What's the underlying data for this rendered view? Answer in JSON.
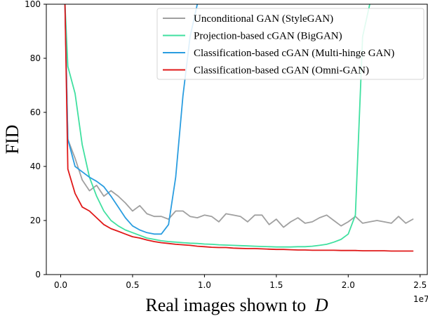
{
  "chart_data": {
    "type": "line",
    "xlabel": "Real images shown to",
    "xlabel_italic": "D",
    "ylabel": "FID",
    "x_offset_label": "1e7",
    "xlim": [
      -0.1,
      2.55
    ],
    "ylim": [
      0,
      100
    ],
    "xticks": [
      0.0,
      0.5,
      1.0,
      1.5,
      2.0,
      2.5
    ],
    "xtick_labels": [
      "0.0",
      "0.5",
      "1.0",
      "1.5",
      "2.0",
      "2.5"
    ],
    "yticks": [
      0,
      20,
      40,
      60,
      80,
      100
    ],
    "ytick_labels": [
      "0",
      "20",
      "40",
      "60",
      "80",
      "100"
    ],
    "legend_position": "top-right",
    "series": [
      {
        "name": "Unconditional GAN (StyleGAN)",
        "color": "#a0a0a0",
        "x": [
          0.03,
          0.05,
          0.1,
          0.15,
          0.2,
          0.25,
          0.3,
          0.35,
          0.4,
          0.45,
          0.5,
          0.55,
          0.6,
          0.65,
          0.7,
          0.75,
          0.8,
          0.85,
          0.9,
          0.95,
          1.0,
          1.05,
          1.1,
          1.15,
          1.2,
          1.25,
          1.3,
          1.35,
          1.4,
          1.45,
          1.5,
          1.55,
          1.6,
          1.65,
          1.7,
          1.75,
          1.8,
          1.85,
          1.9,
          1.95,
          2.0,
          2.05,
          2.1,
          2.15,
          2.2,
          2.25,
          2.3,
          2.35,
          2.4,
          2.45
        ],
        "y": [
          100,
          50,
          43,
          35,
          31,
          33,
          29,
          31,
          29,
          26.5,
          23.5,
          25.5,
          22.5,
          21.5,
          21.5,
          20.5,
          23.5,
          23.5,
          21.5,
          21,
          22,
          21.5,
          19.5,
          22.5,
          22,
          21.5,
          19.5,
          22,
          22,
          18.5,
          20.5,
          17.5,
          19.5,
          21,
          19,
          19.5,
          21,
          22,
          20,
          18,
          19.5,
          21.5,
          19,
          19.5,
          20,
          19.5,
          19,
          21.5,
          19,
          20.5
        ]
      },
      {
        "name": "Projection-based cGAN (BigGAN)",
        "color": "#40e0a0",
        "x": [
          0.03,
          0.05,
          0.1,
          0.15,
          0.2,
          0.25,
          0.3,
          0.35,
          0.4,
          0.45,
          0.5,
          0.55,
          0.6,
          0.65,
          0.7,
          0.75,
          0.8,
          0.85,
          0.9,
          0.95,
          1.0,
          1.05,
          1.1,
          1.15,
          1.2,
          1.25,
          1.3,
          1.35,
          1.4,
          1.45,
          1.5,
          1.55,
          1.6,
          1.65,
          1.7,
          1.75,
          1.8,
          1.85,
          1.9,
          1.95,
          2.0,
          2.05,
          2.1,
          2.15
        ],
        "y": [
          100,
          77,
          67,
          48,
          36,
          29,
          23.5,
          20,
          18,
          16.5,
          15.5,
          14.5,
          13.5,
          13,
          12.5,
          12.2,
          12,
          11.8,
          11.6,
          11.5,
          11.3,
          11.2,
          11,
          10.9,
          10.8,
          10.7,
          10.6,
          10.5,
          10.4,
          10.3,
          10.2,
          10.2,
          10.2,
          10.3,
          10.3,
          10.5,
          10.8,
          11.2,
          12,
          13,
          15,
          22,
          88,
          100
        ]
      },
      {
        "name": "Classification-based cGAN (Multi-hinge GAN)",
        "color": "#2a9de0",
        "x": [
          0.03,
          0.05,
          0.1,
          0.15,
          0.2,
          0.25,
          0.3,
          0.35,
          0.4,
          0.45,
          0.5,
          0.55,
          0.6,
          0.65,
          0.7,
          0.75,
          0.8,
          0.85,
          0.9,
          0.95
        ],
        "y": [
          100,
          50,
          40,
          38,
          36,
          34.5,
          32.5,
          29,
          25,
          21,
          18,
          16.5,
          15.5,
          15,
          15,
          18.5,
          36,
          66,
          88,
          100
        ]
      },
      {
        "name": "Classification-based cGAN (Omni-GAN)",
        "color": "#e01818",
        "x": [
          0.03,
          0.05,
          0.1,
          0.15,
          0.2,
          0.25,
          0.3,
          0.35,
          0.4,
          0.45,
          0.5,
          0.55,
          0.6,
          0.65,
          0.7,
          0.75,
          0.8,
          0.85,
          0.9,
          0.95,
          1.0,
          1.05,
          1.1,
          1.15,
          1.2,
          1.25,
          1.3,
          1.35,
          1.4,
          1.45,
          1.5,
          1.55,
          1.6,
          1.65,
          1.7,
          1.75,
          1.8,
          1.85,
          1.9,
          1.95,
          2.0,
          2.05,
          2.1,
          2.15,
          2.2,
          2.25,
          2.3,
          2.35,
          2.4,
          2.45
        ],
        "y": [
          100,
          39,
          30,
          25,
          23.5,
          21,
          18.5,
          17,
          16,
          15,
          14,
          13.5,
          12.8,
          12.2,
          11.8,
          11.5,
          11.2,
          11,
          10.8,
          10.5,
          10.3,
          10.1,
          10,
          10,
          9.8,
          9.7,
          9.6,
          9.6,
          9.5,
          9.4,
          9.3,
          9.3,
          9.2,
          9.1,
          9.1,
          9,
          9,
          9,
          9,
          8.9,
          8.9,
          8.9,
          8.8,
          8.8,
          8.8,
          8.8,
          8.7,
          8.7,
          8.7,
          8.7
        ]
      }
    ]
  }
}
